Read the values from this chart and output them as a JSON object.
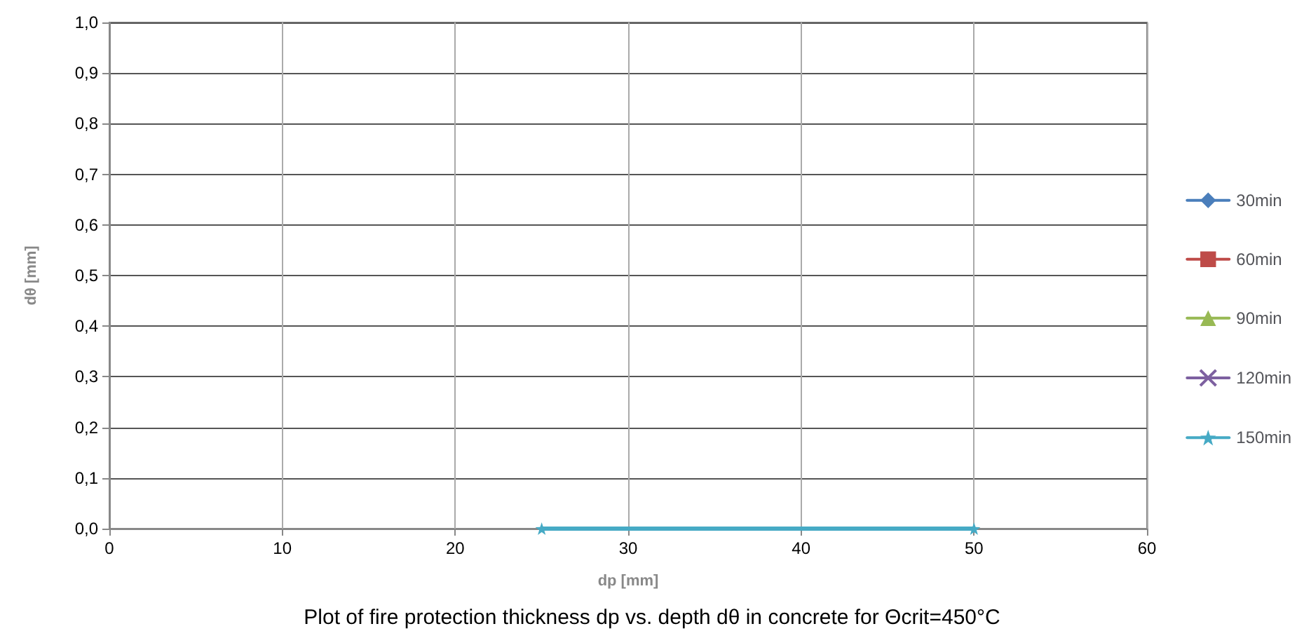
{
  "chart_data": {
    "type": "line",
    "title": "Plot of fire protection thickness dp vs. depth dθ in concrete for Θcrit=450°C",
    "xlabel": "dp [mm]",
    "ylabel": "dθ [mm]",
    "x": [
      25,
      50
    ],
    "series": [
      {
        "name": "30min",
        "color": "#4a7ebb",
        "values": [
          null,
          null
        ],
        "marker": "diamond"
      },
      {
        "name": "60min",
        "color": "#be4b48",
        "values": [
          null,
          null
        ],
        "marker": "square"
      },
      {
        "name": "90min",
        "color": "#98b954",
        "values": [
          null,
          null
        ],
        "marker": "triangle"
      },
      {
        "name": "120min",
        "color": "#7d60a0",
        "values": [
          null,
          null
        ],
        "marker": "cross"
      },
      {
        "name": "150min",
        "color": "#46aac5",
        "values": [
          0,
          0
        ],
        "marker": "star"
      }
    ],
    "xlim": [
      0,
      60
    ],
    "xticks": [
      0,
      10,
      20,
      30,
      40,
      50,
      60
    ],
    "ylim": [
      0,
      1
    ],
    "yticks": [
      {
        "value": 0,
        "label": "0,0"
      },
      {
        "value": 0.1,
        "label": "0,1"
      },
      {
        "value": 0.2,
        "label": "0,2"
      },
      {
        "value": 0.3,
        "label": "0,3"
      },
      {
        "value": 0.4,
        "label": "0,4"
      },
      {
        "value": 0.5,
        "label": "0,5"
      },
      {
        "value": 0.6,
        "label": "0,6"
      },
      {
        "value": 0.7,
        "label": "0,7"
      },
      {
        "value": 0.8,
        "label": "0,8"
      },
      {
        "value": 0.9,
        "label": "0,9"
      },
      {
        "value": 1,
        "label": "1,0"
      }
    ],
    "grid": true,
    "legend": "right"
  }
}
